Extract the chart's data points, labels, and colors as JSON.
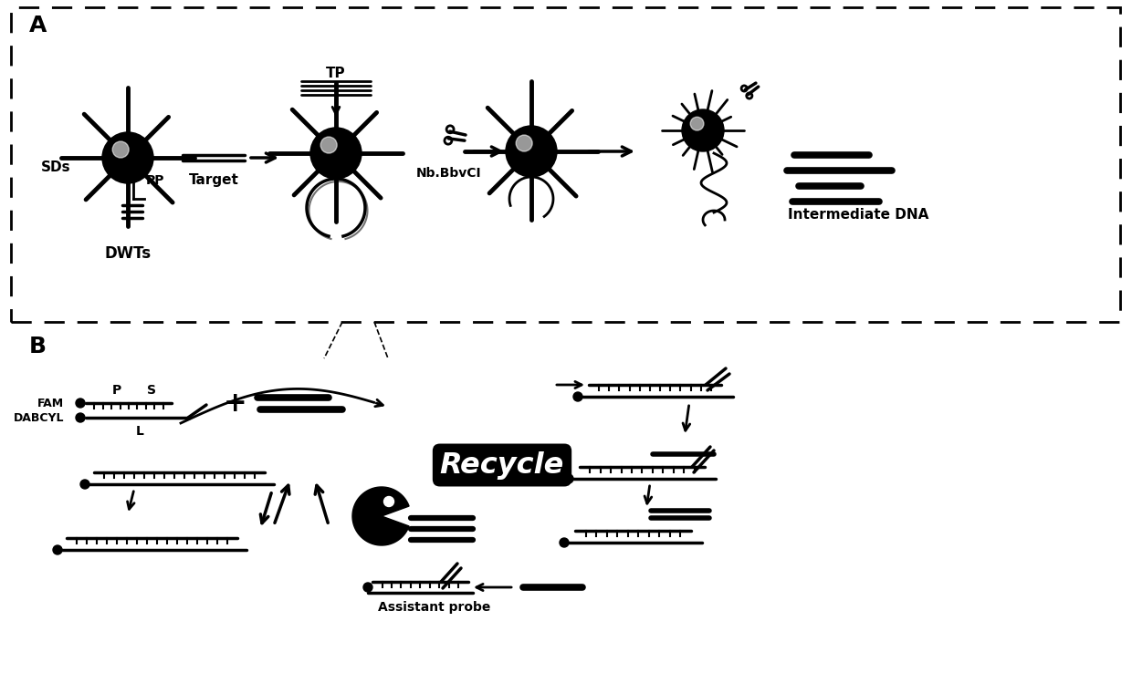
{
  "bg_color": "#ffffff",
  "label_A": "A",
  "label_B": "B",
  "text_SDs": "SDs",
  "text_DWTs": "DWTs",
  "text_PP": "PP",
  "text_TP": "TP",
  "text_Target": "Target",
  "text_NbBbvCI": "Nb.BbvCI",
  "text_IntermediateDNA": "Intermediate DNA",
  "text_FAM": "FAM",
  "text_DABCYL": "DABCYL",
  "text_P": "P",
  "text_S": "S",
  "text_L": "L",
  "text_Recycle": "Recycle",
  "text_AssistantProbe": "Assistant probe",
  "black": "#000000"
}
